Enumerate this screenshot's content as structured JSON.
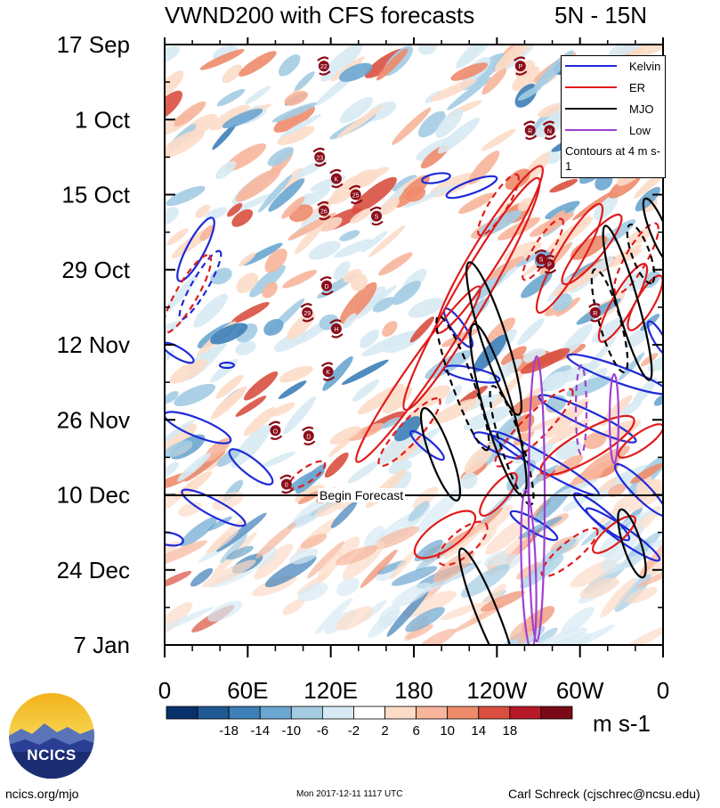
{
  "title": "VWND200 with CFS forecasts",
  "lat_range": "5N - 15N",
  "legend": {
    "items": [
      {
        "label": "Kelvin",
        "color": "#1e2ad8"
      },
      {
        "label": "ER",
        "color": "#e01b1b"
      },
      {
        "label": "MJO",
        "color": "#000000"
      },
      {
        "label": "Low",
        "color": "#a040d0"
      }
    ],
    "note": "Contours at 4 m s-1"
  },
  "forecast_label": "Begin Forecast",
  "units": "m s-1",
  "footer": {
    "url": "ncics.org/mjo",
    "timestamp": "Mon 2017-12-11 1117 UTC",
    "author": "Carl Schreck (cjschrec@ncsu.edu)"
  },
  "logo_text": "NCICS",
  "chart_data": {
    "type": "heatmap",
    "title": "VWND200 with CFS forecasts",
    "subtitle": "5N - 15N",
    "x_tick_labels": [
      "0",
      "60E",
      "120E",
      "180",
      "120W",
      "60W",
      "0"
    ],
    "x_ticks_deg": [
      0,
      60,
      120,
      180,
      240,
      300,
      360
    ],
    "y_tick_labels": [
      "17 Sep",
      "1 Oct",
      "15 Oct",
      "29 Oct",
      "12 Nov",
      "26 Nov",
      "10 Dec",
      "24 Dec",
      "7 Jan"
    ],
    "forecast_start": "10 Dec",
    "colorbar": {
      "labels": [
        "-18",
        "-14",
        "-10",
        "-6",
        "-2",
        "2",
        "6",
        "10",
        "14",
        "18"
      ],
      "colors": [
        "#08306b",
        "#1f5a96",
        "#3d7fb8",
        "#6ba6d0",
        "#a3cce3",
        "#d7eaf3",
        "#ffffff",
        "#fcdcc8",
        "#f7b59b",
        "#ee8b6b",
        "#d95040",
        "#b61a28",
        "#7a0a17"
      ]
    },
    "storm_labels": [
      {
        "id": "22",
        "lon_deg": 115,
        "date": "21 Sep"
      },
      {
        "id": "P",
        "lon_deg": 257,
        "date": "21 Sep"
      },
      {
        "id": "R",
        "lon_deg": 264,
        "date": "3 Oct"
      },
      {
        "id": "N",
        "lon_deg": 278,
        "date": "3 Oct"
      },
      {
        "id": "23",
        "lon_deg": 112,
        "date": "8 Oct"
      },
      {
        "id": "K",
        "lon_deg": 124,
        "date": "12 Oct"
      },
      {
        "id": "25",
        "lon_deg": 138,
        "date": "15 Oct"
      },
      {
        "id": "26",
        "lon_deg": 115,
        "date": "18 Oct"
      },
      {
        "id": "S",
        "lon_deg": 153,
        "date": "19 Oct"
      },
      {
        "id": "S",
        "lon_deg": 272,
        "date": "27 Oct"
      },
      {
        "id": "P",
        "lon_deg": 278,
        "date": "28 Oct"
      },
      {
        "id": "D",
        "lon_deg": 117,
        "date": "1 Nov"
      },
      {
        "id": "29",
        "lon_deg": 103,
        "date": "6 Nov"
      },
      {
        "id": "R",
        "lon_deg": 311,
        "date": "6 Nov"
      },
      {
        "id": "H",
        "lon_deg": 124,
        "date": "9 Nov"
      },
      {
        "id": "K",
        "lon_deg": 118,
        "date": "17 Nov"
      },
      {
        "id": "O",
        "lon_deg": 80,
        "date": "28 Nov"
      },
      {
        "id": "D",
        "lon_deg": 104,
        "date": "29 Nov"
      },
      {
        "id": "0",
        "lon_deg": 88,
        "date": "8 Dec"
      }
    ]
  }
}
